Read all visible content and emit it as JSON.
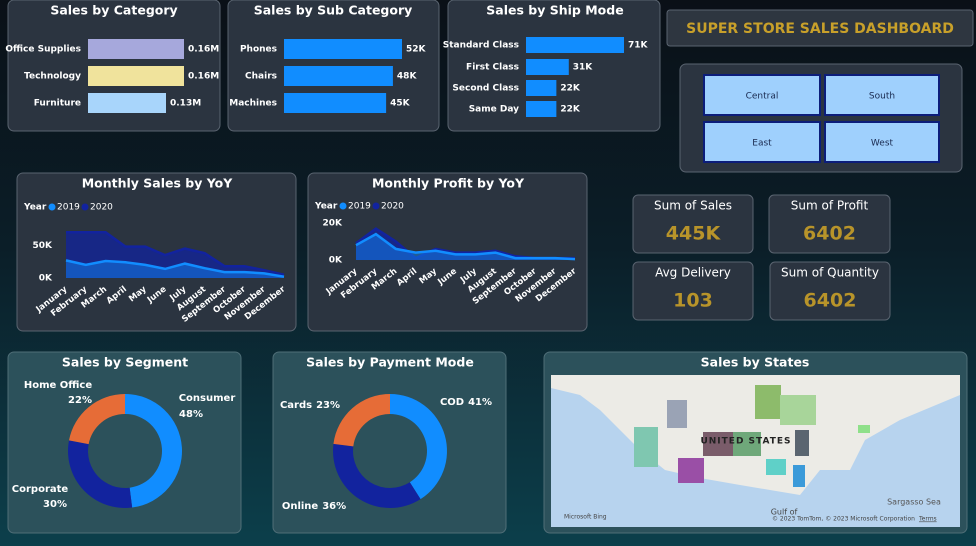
{
  "dashboard_title": "SUPER STORE SALES DASHBOARD",
  "slicer": [
    "Central",
    "South",
    "East",
    "West"
  ],
  "kpis": [
    {
      "label": "Sum of Sales",
      "value": "445K"
    },
    {
      "label": "Sum of Profit",
      "value": 6402
    },
    {
      "label": "Avg Delivery",
      "value": 103
    },
    {
      "label": "Sum of Quantity",
      "value": 6402
    }
  ],
  "map": {
    "title": "Sales by States",
    "country_label": "UNITED STATES",
    "water_labels": [
      "Gulf of",
      "Sargasso Sea"
    ],
    "bing": "Microsoft Bing",
    "attribution": "© 2023 TomTom, © 2023 Microsoft Corporation",
    "terms": "Terms"
  },
  "chart_data": [
    {
      "type": "hbar",
      "title": "Sales by Category",
      "categories": [
        "Office Supplies",
        "Technology",
        "Furniture"
      ],
      "values": [
        160000,
        160000,
        130000
      ],
      "value_labels": [
        "0.16M",
        "0.16M",
        "0.13M"
      ],
      "colors": [
        "#a6a8dc",
        "#f0e39c",
        "#a8d5fb"
      ]
    },
    {
      "type": "hbar",
      "title": "Sales by Sub Category",
      "categories": [
        "Phones",
        "Chairs",
        "Machines"
      ],
      "values": [
        52000,
        48000,
        45000
      ],
      "value_labels": [
        "52K",
        "48K",
        "45K"
      ],
      "color": "#118dff"
    },
    {
      "type": "hbar",
      "title": "Sales by Ship Mode",
      "categories": [
        "Standard Class",
        "First Class",
        "Second Class",
        "Same Day"
      ],
      "values": [
        71000,
        31000,
        22000,
        22000
      ],
      "value_labels": [
        "71K",
        "31K",
        "22K",
        "22K"
      ],
      "color": "#118dff"
    },
    {
      "type": "area",
      "title": "Monthly Sales by YoY",
      "legend_title": "Year",
      "categories": [
        "January",
        "February",
        "March",
        "April",
        "May",
        "June",
        "July",
        "August",
        "September",
        "October",
        "November",
        "December"
      ],
      "series": [
        {
          "name": "2019",
          "color": "#118dff",
          "values": [
            27000,
            20000,
            26000,
            24000,
            20000,
            14000,
            22000,
            15000,
            9000,
            9000,
            7000,
            2000
          ]
        },
        {
          "name": "2020",
          "color": "#12239e",
          "values": [
            70000,
            70000,
            70000,
            48000,
            48000,
            35000,
            45000,
            38000,
            18000,
            18000,
            12000,
            5000
          ]
        }
      ],
      "ylim": [
        0,
        75000
      ],
      "yticks": [
        {
          "value": 0,
          "label": "0K"
        },
        {
          "value": 50000,
          "label": "50K"
        }
      ]
    },
    {
      "type": "area",
      "title": "Monthly Profit by YoY",
      "legend_title": "Year",
      "categories": [
        "January",
        "February",
        "March",
        "April",
        "May",
        "June",
        "July",
        "August",
        "September",
        "October",
        "November",
        "December"
      ],
      "series": [
        {
          "name": "2019",
          "color": "#118dff",
          "values": [
            8000,
            14000,
            6000,
            4000,
            5000,
            3000,
            3000,
            4000,
            1000,
            1000,
            1000,
            500
          ]
        },
        {
          "name": "2020",
          "color": "#12239e",
          "values": [
            9000,
            17000,
            10000,
            1000,
            6000,
            4000,
            4000,
            5000,
            2000,
            1000,
            1000,
            1000
          ]
        }
      ],
      "ylim": [
        0,
        20000
      ],
      "yticks": [
        {
          "value": 0,
          "label": "0K"
        },
        {
          "value": 20000,
          "label": "20K"
        }
      ]
    },
    {
      "type": "donut",
      "title": "Sales by Segment",
      "categories": [
        "Consumer",
        "Corporate",
        "Home Office"
      ],
      "values": [
        48,
        30,
        22
      ],
      "value_labels": [
        "48%",
        "30%",
        "22%"
      ],
      "colors": [
        "#118dff",
        "#12239e",
        "#e66c37"
      ]
    },
    {
      "type": "donut",
      "title": "Sales by Payment Mode",
      "categories": [
        "COD",
        "Online",
        "Cards"
      ],
      "values": [
        41,
        36,
        23
      ],
      "value_labels": [
        "41%",
        "36%",
        "23%"
      ],
      "colors": [
        "#118dff",
        "#12239e",
        "#e66c37"
      ]
    }
  ]
}
